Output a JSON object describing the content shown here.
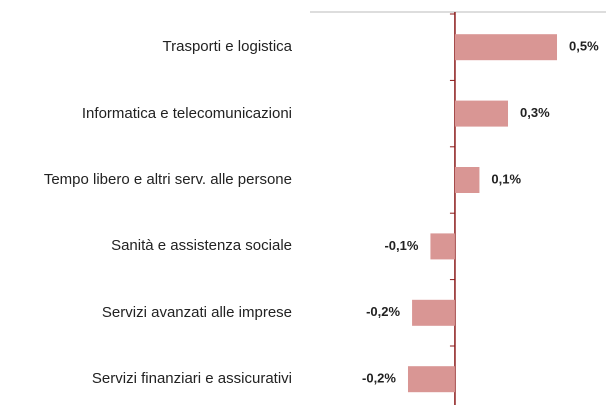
{
  "chart_data": {
    "type": "barh",
    "categories": [
      "Trasporti e logistica",
      "Informatica e telecomunicazioni",
      "Tempo libero e altri serv. alle persone",
      "Sanità e assistenza sociale",
      "Servizi avanzati alle imprese",
      "Servizi finanziari e assicurativi"
    ],
    "values": [
      0.5,
      0.26,
      0.12,
      -0.12,
      -0.21,
      -0.23
    ],
    "value_labels": [
      "0,5%",
      "0,3%",
      "0,1%",
      "-0,1%",
      "-0,2%",
      "-0,2%"
    ],
    "color": "#d99694",
    "xlim": [
      -0.71,
      0.74
    ]
  }
}
